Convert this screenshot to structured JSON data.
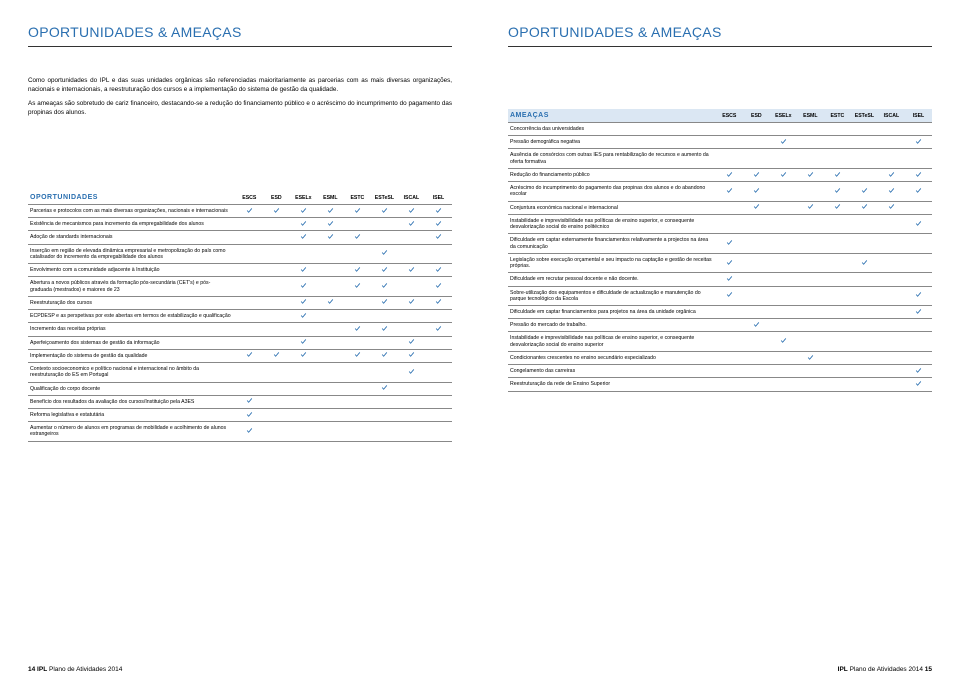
{
  "titles": {
    "left": "OPORTUNIDADES & AMEAÇAS",
    "right": "OPORTUNIDADES & AMEAÇAS"
  },
  "intro": {
    "p1": "Como oportunidades do IPL e das suas unidades orgânicas são referenciadas maioritariamente as parcerias com as mais diversas organizações, nacionais e internacionais, a reestruturação dos cursos e a implementação do sistema de gestão da qualidade.",
    "p2": "As ameaças são sobretudo de cariz financeiro, destacando-se a redução do financiamento público e o acréscimo do incumprimento do pagamento das propinas dos alunos."
  },
  "columns": [
    "ESCS",
    "ESD",
    "ESELx",
    "ESML",
    "ESTC",
    "ESTeSL",
    "ISCAL",
    "ISEL"
  ],
  "check_color": "#2a6fb0",
  "oportunidades": {
    "heading": "OPORTUNIDADES",
    "col_label_width": "49%",
    "col_data_width": "6.375%",
    "rows": [
      {
        "label": "Parcerias e protocolos com as mais diversas organizações, nacionais e internacionais",
        "v": [
          1,
          1,
          1,
          1,
          1,
          1,
          1,
          1
        ]
      },
      {
        "label": "Existência de mecanismos para incremento da empregabilidade dos alunos",
        "v": [
          0,
          0,
          1,
          1,
          0,
          0,
          1,
          1
        ]
      },
      {
        "label": "Adoção de standards internacionais",
        "v": [
          0,
          0,
          1,
          1,
          1,
          0,
          0,
          1
        ]
      },
      {
        "label": "Inserção em região de elevada dinâmica empresarial e metropolização do país como catalisador do incremento da empregabilidade dos alunos",
        "v": [
          0,
          0,
          0,
          0,
          0,
          1,
          0,
          0
        ]
      },
      {
        "label": "Envolvimento com a comunidade adjacente à Instituição",
        "v": [
          0,
          0,
          1,
          0,
          1,
          1,
          1,
          1
        ]
      },
      {
        "label": "Abertura a novos públicos através da formação pós-secundária (CET's) e pós-graduada (mestrados) e maiores de 23",
        "v": [
          0,
          0,
          1,
          0,
          1,
          1,
          0,
          1
        ]
      },
      {
        "label": "Reestruturação dos cursos",
        "v": [
          0,
          0,
          1,
          1,
          0,
          1,
          1,
          1
        ]
      },
      {
        "label": "ECPDESP e as perspetivas por este abertas em termos de estabilização e qualificação",
        "v": [
          0,
          0,
          1,
          0,
          0,
          0,
          0,
          0
        ]
      },
      {
        "label": "Incremento das receitas próprias",
        "v": [
          0,
          0,
          0,
          0,
          1,
          1,
          0,
          1
        ]
      },
      {
        "label": "Aperfeiçoamento dos sistemas de gestão da informação",
        "v": [
          0,
          0,
          1,
          0,
          0,
          0,
          1,
          0
        ]
      },
      {
        "label": "Implementação do sistema de gestão da qualidade",
        "v": [
          1,
          1,
          1,
          0,
          1,
          1,
          1,
          0
        ]
      },
      {
        "label": "Contexto socioeconomico e político nacional e internacional no âmbito da reestruturação do ES em Portugal",
        "v": [
          0,
          0,
          0,
          0,
          0,
          0,
          1,
          0
        ]
      },
      {
        "label": "Qualificação do corpo docente",
        "v": [
          0,
          0,
          0,
          0,
          0,
          1,
          0,
          0
        ]
      },
      {
        "label": "Benefício dos resultados da avaliação dos cursos/Instituição pela A3ES",
        "v": [
          1,
          0,
          0,
          0,
          0,
          0,
          0,
          0
        ]
      },
      {
        "label": "Reforma legislativa e estatutária",
        "v": [
          1,
          0,
          0,
          0,
          0,
          0,
          0,
          0
        ]
      },
      {
        "label": "Aumentar o número de alunos em programas de mobilidade e acolhimento de alunos estrangeiros",
        "v": [
          1,
          0,
          0,
          0,
          0,
          0,
          0,
          0
        ]
      }
    ]
  },
  "ameacas": {
    "heading": "AMEAÇAS",
    "col_label_width": "49%",
    "col_data_width": "6.375%",
    "rows": [
      {
        "label": "Concorrência das universidades",
        "v": [
          0,
          0,
          0,
          0,
          0,
          0,
          0,
          0
        ]
      },
      {
        "label": "Pressão demográfica negativa",
        "v": [
          0,
          0,
          1,
          0,
          0,
          0,
          0,
          1
        ]
      },
      {
        "label": "Ausência de consórcios com outras IES para rentabilização de recursos e aumento da oferta formativa",
        "v": [
          0,
          0,
          0,
          0,
          0,
          0,
          0,
          0
        ]
      },
      {
        "label": "Redução do financiamento público",
        "v": [
          1,
          1,
          1,
          1,
          1,
          0,
          1,
          1
        ]
      },
      {
        "label": "Acréscimo do incumprimento do pagamento das propinas dos alunos e do abandono escolar",
        "v": [
          1,
          1,
          0,
          0,
          1,
          1,
          1,
          1
        ]
      },
      {
        "label": "Conjuntura económica nacional e internacional",
        "v": [
          0,
          1,
          0,
          1,
          1,
          1,
          1,
          0
        ]
      },
      {
        "label": "Instabilidade e imprevisibilidade nas políticas de ensino superior, e consequente desvalorização social do ensino politécnico",
        "v": [
          0,
          0,
          0,
          0,
          0,
          0,
          0,
          1
        ]
      },
      {
        "label": "Dificuldade em captar externamente financiamentos relativamente a projectos na área da comunicação",
        "v": [
          1,
          0,
          0,
          0,
          0,
          0,
          0,
          0
        ]
      },
      {
        "label": "Legislação sobre execução orçamental e seu impacto na captação e gestão de receitas próprias.",
        "v": [
          1,
          0,
          0,
          0,
          0,
          1,
          0,
          0
        ]
      },
      {
        "label": "Dificuldade em recrutar pessoal docente e não docente.",
        "v": [
          1,
          0,
          0,
          0,
          0,
          0,
          0,
          0
        ]
      },
      {
        "label": "Sobre-utilização dos equipamentos e dificuldade de actualização e manutenção do parque tecnológico da Escola",
        "v": [
          1,
          0,
          0,
          0,
          0,
          0,
          0,
          1
        ]
      },
      {
        "label": "Dificuldade em captar financiamentos para projetos na área da unidade orgânica",
        "v": [
          0,
          0,
          0,
          0,
          0,
          0,
          0,
          1
        ]
      },
      {
        "label": "Pressão do mercado de trabalho.",
        "v": [
          0,
          1,
          0,
          0,
          0,
          0,
          0,
          0
        ]
      },
      {
        "label": "Instabilidade e imprevisibilidade nas políticas de ensino superior, e consequente desvalorização social do ensino superior",
        "v": [
          0,
          0,
          1,
          0,
          0,
          0,
          0,
          0
        ]
      },
      {
        "label": "Condicionantes crescentes no ensino secundário especializado",
        "v": [
          0,
          0,
          0,
          1,
          0,
          0,
          0,
          0
        ]
      },
      {
        "label": "Congelamento das carreiras",
        "v": [
          0,
          0,
          0,
          0,
          0,
          0,
          0,
          1
        ]
      },
      {
        "label": "Reestruturação da rede de Ensino Superior",
        "v": [
          0,
          0,
          0,
          0,
          0,
          0,
          0,
          1
        ]
      }
    ]
  },
  "footer": {
    "left_text": "IPL Plano de Atividades 2014",
    "right_text": "IPL Plano de Atividades 2014",
    "left_num": "14",
    "right_num": "15"
  }
}
